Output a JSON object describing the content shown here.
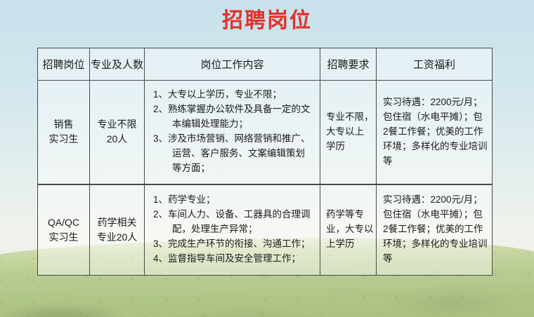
{
  "title": "招聘岗位",
  "colors": {
    "title_red": "#e2312a",
    "table_border": "#4a4a4a",
    "text": "#1b1b1b",
    "sky": "#c8e1eb",
    "grass": "#b3c98c"
  },
  "table": {
    "headers": [
      "招聘岗位",
      "专业及人数",
      "岗位工作内容",
      "招聘要求",
      "工资福利"
    ],
    "rows": [
      {
        "position": "销售\n实习生",
        "major_count": "专业不限\n20人",
        "duties": [
          "1、大专以上学历，专业不限；",
          "2、熟练掌握办公软件及具备一定的文本编辑处理能力；",
          "3、涉及市场营销、网络营销和推广、运营、客户服务、文案编辑策划等方面；"
        ],
        "requirements": "专业不限，\n大专以上\n学历",
        "benefits": "实习待遇：2200元/月；包住宿（水电平摊）；包2餐工作餐；优美的工作环境；多样化的专业培训等"
      },
      {
        "position": "QA/QC\n实习生",
        "major_count": "药学相关\n专业20人",
        "duties": [
          "1、药学专业；",
          "2、车间人力、设备、工器具的合理调配，处理生产异常；",
          "3、完成生产环节的衔接、沟通工作；",
          "4、监督指导车间及安全管理工作；"
        ],
        "requirements": "药学等专\n业，大专以\n上学历",
        "benefits": "实习待遇：2200元/月；包住宿（水电平摊）；包2餐工作餐；优美的工作环境；多样化的专业培训等"
      }
    ]
  }
}
